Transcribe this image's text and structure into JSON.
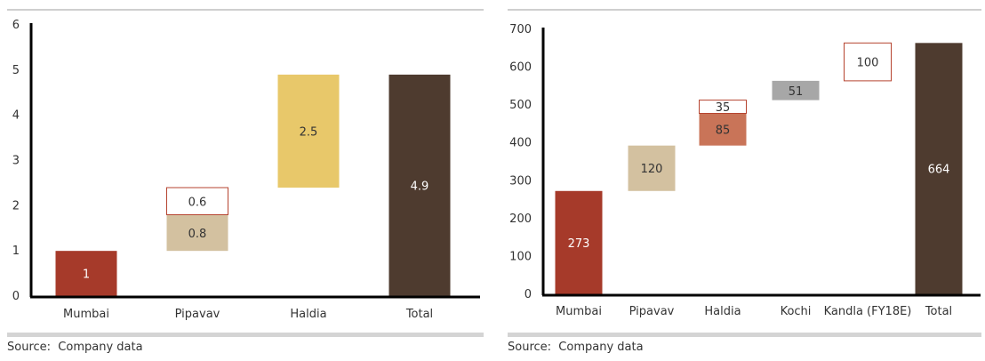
{
  "chart_data": [
    {
      "type": "bar",
      "subtype": "waterfall",
      "categories": [
        "Mumbai",
        "Pipavav",
        "Haldia",
        "Total"
      ],
      "ylim": [
        0,
        6
      ],
      "yticks": [
        "0",
        "1",
        "2",
        "3",
        "4",
        "5",
        "6"
      ],
      "bars": [
        {
          "category": "Mumbai",
          "base": 0,
          "value": 1,
          "label": "1",
          "style": "solid",
          "color": "#a63a2a",
          "text_color": "#ffffff"
        },
        {
          "category": "Pipavav",
          "base": 1,
          "value": 0.8,
          "label": "0.8",
          "style": "solid",
          "color": "#d3c1a0",
          "text_color": "#333333"
        },
        {
          "category": "Pipavav",
          "base": 1.8,
          "value": 0.6,
          "label": "0.6",
          "style": "outline",
          "color": "#b5432f",
          "text_color": "#333333"
        },
        {
          "category": "Haldia",
          "base": 2.4,
          "value": 2.5,
          "label": "2.5",
          "style": "solid",
          "color": "#e8c86a",
          "text_color": "#333333"
        },
        {
          "category": "Total",
          "base": 0,
          "value": 4.9,
          "label": "4.9",
          "style": "solid",
          "color": "#4e3b2f",
          "text_color": "#ffffff"
        }
      ]
    },
    {
      "type": "bar",
      "subtype": "waterfall",
      "categories": [
        "Mumbai",
        "Pipavav",
        "Haldia",
        "Kochi",
        "Kandla (FY18E)",
        "Total"
      ],
      "ylim": [
        0,
        700
      ],
      "yticks": [
        "0",
        "100",
        "200",
        "300",
        "400",
        "500",
        "600",
        "700"
      ],
      "bars": [
        {
          "category": "Mumbai",
          "base": 0,
          "value": 273,
          "label": "273",
          "style": "solid",
          "color": "#a63a2a",
          "text_color": "#ffffff"
        },
        {
          "category": "Pipavav",
          "base": 273,
          "value": 120,
          "label": "120",
          "style": "solid",
          "color": "#d3c1a0",
          "text_color": "#333333"
        },
        {
          "category": "Haldia",
          "base": 393,
          "value": 85,
          "label": "85",
          "style": "solid",
          "color": "#c97458",
          "text_color": "#333333"
        },
        {
          "category": "Haldia",
          "base": 478,
          "value": 35,
          "label": "35",
          "style": "outline",
          "color": "#b5432f",
          "text_color": "#333333"
        },
        {
          "category": "Kochi",
          "base": 513,
          "value": 51,
          "label": "51",
          "style": "solid",
          "color": "#a7a7a7",
          "text_color": "#333333"
        },
        {
          "category": "Kandla (FY18E)",
          "base": 564,
          "value": 100,
          "label": "100",
          "style": "outline",
          "color": "#b5432f",
          "text_color": "#333333"
        },
        {
          "category": "Total",
          "base": 0,
          "value": 664,
          "label": "664",
          "style": "solid",
          "color": "#4e3b2f",
          "text_color": "#ffffff"
        }
      ]
    }
  ],
  "sources": [
    "Source:  Company data",
    "Source:  Company data"
  ]
}
